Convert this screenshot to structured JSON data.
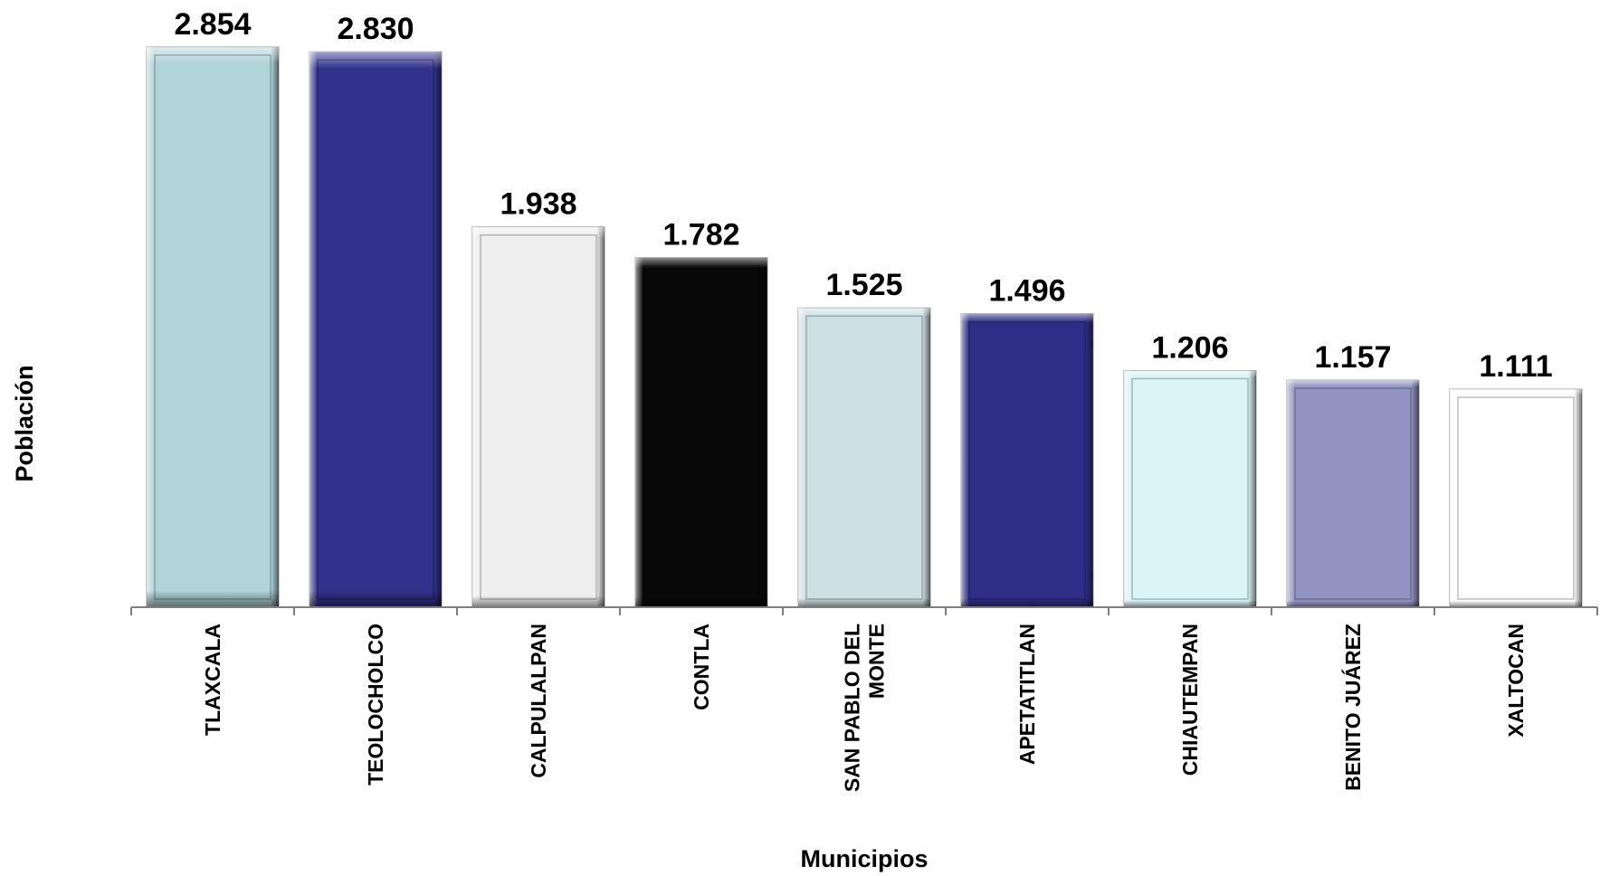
{
  "chart_data": {
    "type": "bar",
    "title": "",
    "xlabel": "Municipios",
    "ylabel": "Población",
    "ylim": [
      0,
      2854
    ],
    "grid": false,
    "legend": "none",
    "categories": [
      [
        "TLAXCALA"
      ],
      [
        "TEOLOCHOLCO"
      ],
      [
        "CALPULALPAN"
      ],
      [
        "CONTLA"
      ],
      [
        "SAN PABLO DEL",
        "MONTE"
      ],
      [
        "APETATITLAN"
      ],
      [
        "CHIAUTEMPAN"
      ],
      [
        "BENITO JUÁREZ"
      ],
      [
        "XALTOCAN"
      ]
    ],
    "values": [
      2854,
      2830,
      1938,
      1782,
      1525,
      1496,
      1206,
      1157,
      1111
    ],
    "value_labels": [
      "2.854",
      "2.830",
      "1.938",
      "1.782",
      "1.525",
      "1.496",
      "1.206",
      "1.157",
      "1.111"
    ],
    "colors": [
      "#b0d4d8",
      "#32328c",
      "#eeeeee",
      "#080808",
      "#cde0e4",
      "#2e2e86",
      "#d9f5f7",
      "#9494c2",
      "#ffffff"
    ]
  }
}
